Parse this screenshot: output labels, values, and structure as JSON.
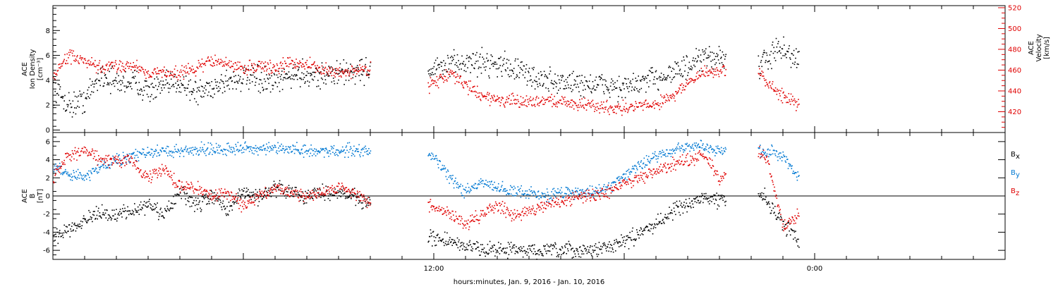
{
  "chart_data": {
    "type": "scatter",
    "x_range_hours": [
      0,
      30
    ],
    "x_ticks": [
      {
        "t": 12,
        "label": "12:00"
      },
      {
        "t": 24,
        "label": "0:00"
      }
    ],
    "xlabel": "hours:minutes, Jan.  9, 2016 - Jan. 10, 2016",
    "data_gaps_hours": [
      [
        10,
        11.8
      ],
      [
        21.2,
        22.2
      ],
      [
        23.5,
        30
      ]
    ],
    "panels": [
      {
        "name": "ACE Ion Density / Velocity",
        "ylabel_lines": [
          "ACE",
          "Ion Density",
          "[cm⁻³]"
        ],
        "ylim": [
          -0.2,
          10
        ],
        "yticks": [
          0,
          2,
          4,
          6,
          8
        ],
        "ylabel_right_lines": [
          "ACE",
          "Velocity",
          "[km/s]"
        ],
        "ylim_right": [
          400,
          522
        ],
        "yticks_right": [
          420,
          440,
          460,
          480,
          500,
          520
        ],
        "right_axis_color": "#e00000",
        "series": [
          {
            "name": "density",
            "axis": "left",
            "color": "#000000",
            "points": [
              [
                0,
                3.5
              ],
              [
                0.5,
                2.0
              ],
              [
                1,
                2.5
              ],
              [
                1.5,
                4.5
              ],
              [
                2,
                3.8
              ],
              [
                2.5,
                4.0
              ],
              [
                3,
                3.2
              ],
              [
                3.5,
                3.5
              ],
              [
                4,
                4.0
              ],
              [
                4.5,
                3.0
              ],
              [
                5,
                3.5
              ],
              [
                5.5,
                4.0
              ],
              [
                6,
                4.2
              ],
              [
                6.5,
                4.0
              ],
              [
                7,
                3.8
              ],
              [
                7.5,
                4.5
              ],
              [
                8,
                4.5
              ],
              [
                8.5,
                4.4
              ],
              [
                9,
                4.6
              ],
              [
                9.5,
                4.8
              ],
              [
                10,
                4.9
              ],
              [
                11.8,
                4.8
              ],
              [
                12.5,
                5.2
              ],
              [
                13,
                5.5
              ],
              [
                13.5,
                5.5
              ],
              [
                14,
                5.4
              ],
              [
                14.5,
                5.0
              ],
              [
                15,
                4.4
              ],
              [
                15.5,
                4.0
              ],
              [
                16,
                3.9
              ],
              [
                16.5,
                3.8
              ],
              [
                17,
                3.7
              ],
              [
                17.5,
                3.6
              ],
              [
                18,
                3.4
              ],
              [
                18.5,
                3.8
              ],
              [
                19,
                4.2
              ],
              [
                19.5,
                4.8
              ],
              [
                20,
                5.0
              ],
              [
                20.5,
                5.8
              ],
              [
                21,
                6.0
              ],
              [
                22.2,
                4.8
              ],
              [
                22.5,
                6.0
              ],
              [
                23,
                6.5
              ],
              [
                23.5,
                5.5
              ]
            ],
            "jitter": 1.5
          },
          {
            "name": "velocity",
            "axis": "right",
            "color": "#e00000",
            "points": [
              [
                0,
                455
              ],
              [
                0.5,
                475
              ],
              [
                1,
                468
              ],
              [
                1.5,
                462
              ],
              [
                2,
                465
              ],
              [
                2.5,
                465
              ],
              [
                3,
                458
              ],
              [
                3.5,
                458
              ],
              [
                4,
                458
              ],
              [
                4.5,
                462
              ],
              [
                5,
                470
              ],
              [
                5.5,
                466
              ],
              [
                6,
                462
              ],
              [
                6.5,
                465
              ],
              [
                7,
                462
              ],
              [
                7.5,
                468
              ],
              [
                8,
                466
              ],
              [
                8.5,
                460
              ],
              [
                9,
                458
              ],
              [
                9.5,
                460
              ],
              [
                10,
                462
              ],
              [
                11.8,
                446
              ],
              [
                12.5,
                457
              ],
              [
                13,
                446
              ],
              [
                13.5,
                436
              ],
              [
                14,
                432
              ],
              [
                14.5,
                430
              ],
              [
                15,
                430
              ],
              [
                15.5,
                432
              ],
              [
                16,
                430
              ],
              [
                16.5,
                428
              ],
              [
                17,
                426
              ],
              [
                17.5,
                425
              ],
              [
                18,
                424
              ],
              [
                18.5,
                426
              ],
              [
                19,
                428
              ],
              [
                19.5,
                436
              ],
              [
                20,
                448
              ],
              [
                20.5,
                458
              ],
              [
                21,
                460
              ],
              [
                22.2,
                458
              ],
              [
                22.5,
                448
              ],
              [
                23,
                436
              ],
              [
                23.5,
                425
              ]
            ],
            "jitter": 9
          }
        ]
      },
      {
        "name": "ACE B",
        "ylabel_lines": [
          "ACE",
          "B",
          "[nT]"
        ],
        "ylim": [
          -7,
          7
        ],
        "yticks": [
          -6,
          -4,
          -2,
          0,
          2,
          4,
          6
        ],
        "zero_line": true,
        "series": [
          {
            "name": "Bx",
            "label": "B",
            "subscript": "x",
            "color": "#000000",
            "points": [
              [
                0,
                -4.5
              ],
              [
                0.5,
                -3.5
              ],
              [
                1,
                -2.5
              ],
              [
                1.5,
                -2.0
              ],
              [
                2,
                -2.0
              ],
              [
                2.5,
                -1.5
              ],
              [
                3,
                -1.0
              ],
              [
                3.5,
                -2.0
              ],
              [
                4,
                0.5
              ],
              [
                4.5,
                -1.0
              ],
              [
                5,
                0.0
              ],
              [
                5.5,
                -1.5
              ],
              [
                6,
                0.5
              ],
              [
                6.5,
                0.0
              ],
              [
                7,
                1.0
              ],
              [
                7.5,
                0.5
              ],
              [
                8,
                0.0
              ],
              [
                8.5,
                0.5
              ],
              [
                9,
                0.5
              ],
              [
                9.5,
                0.0
              ],
              [
                10,
                -1.0
              ],
              [
                11.8,
                -4.5
              ],
              [
                12.5,
                -5.0
              ],
              [
                13,
                -5.5
              ],
              [
                13.5,
                -5.8
              ],
              [
                14,
                -5.8
              ],
              [
                14.5,
                -5.9
              ],
              [
                15,
                -6.0
              ],
              [
                15.5,
                -6.0
              ],
              [
                16,
                -6.0
              ],
              [
                16.5,
                -6.0
              ],
              [
                17,
                -5.9
              ],
              [
                17.5,
                -5.5
              ],
              [
                18,
                -5.0
              ],
              [
                18.5,
                -4.0
              ],
              [
                19,
                -3.0
              ],
              [
                19.5,
                -1.5
              ],
              [
                20,
                -1.0
              ],
              [
                20.5,
                0.0
              ],
              [
                21,
                -0.5
              ],
              [
                22.2,
                0.5
              ],
              [
                22.5,
                -0.5
              ],
              [
                23,
                -3.0
              ],
              [
                23.5,
                -5.0
              ]
            ],
            "jitter": 1.2
          },
          {
            "name": "By",
            "label": "B",
            "subscript": "y",
            "color": "#0078d2",
            "points": [
              [
                0,
                3.5
              ],
              [
                0.5,
                2.5
              ],
              [
                1,
                2.0
              ],
              [
                1.5,
                3.5
              ],
              [
                2,
                4.0
              ],
              [
                2.5,
                4.5
              ],
              [
                3,
                4.8
              ],
              [
                3.5,
                5.0
              ],
              [
                4,
                5.0
              ],
              [
                4.5,
                5.2
              ],
              [
                5,
                5.2
              ],
              [
                5.5,
                5.3
              ],
              [
                6,
                5.3
              ],
              [
                6.5,
                5.2
              ],
              [
                7,
                5.2
              ],
              [
                7.5,
                5.2
              ],
              [
                8,
                5.0
              ],
              [
                8.5,
                5.0
              ],
              [
                9,
                5.0
              ],
              [
                9.5,
                5.2
              ],
              [
                10,
                5.0
              ],
              [
                11.8,
                5.0
              ],
              [
                12.5,
                2.0
              ],
              [
                13,
                0.5
              ],
              [
                13.5,
                1.5
              ],
              [
                14,
                1.0
              ],
              [
                14.5,
                0.5
              ],
              [
                15,
                0.5
              ],
              [
                15.5,
                0.0
              ],
              [
                16,
                0.5
              ],
              [
                16.5,
                0.5
              ],
              [
                17,
                0.5
              ],
              [
                17.5,
                1.0
              ],
              [
                18,
                2.5
              ],
              [
                18.5,
                3.5
              ],
              [
                19,
                4.5
              ],
              [
                19.5,
                5.0
              ],
              [
                20,
                5.5
              ],
              [
                20.5,
                5.5
              ],
              [
                21,
                5.0
              ],
              [
                22.2,
                5.0
              ],
              [
                22.5,
                5.0
              ],
              [
                23,
                4.5
              ],
              [
                23.5,
                2.0
              ]
            ],
            "jitter": 1.0
          },
          {
            "name": "Bz",
            "label": "B",
            "subscript": "z",
            "color": "#e00000",
            "points": [
              [
                0,
                2.0
              ],
              [
                0.5,
                4.5
              ],
              [
                1,
                5.0
              ],
              [
                1.5,
                4.0
              ],
              [
                2,
                4.0
              ],
              [
                2.5,
                3.8
              ],
              [
                3,
                2.0
              ],
              [
                3.5,
                3.0
              ],
              [
                4,
                1.0
              ],
              [
                4.5,
                1.0
              ],
              [
                5,
                0.0
              ],
              [
                5.5,
                0.5
              ],
              [
                6,
                -1.0
              ],
              [
                6.5,
                0.0
              ],
              [
                7,
                1.0
              ],
              [
                7.5,
                0.5
              ],
              [
                8,
                0.0
              ],
              [
                8.5,
                0.5
              ],
              [
                9,
                1.0
              ],
              [
                9.5,
                0.5
              ],
              [
                10,
                -1.0
              ],
              [
                11.8,
                -1.0
              ],
              [
                12.5,
                -2.0
              ],
              [
                13,
                -3.0
              ],
              [
                13.5,
                -2.0
              ],
              [
                14,
                -1.0
              ],
              [
                14.5,
                -2.0
              ],
              [
                15,
                -1.5
              ],
              [
                15.5,
                -1.0
              ],
              [
                16,
                -0.5
              ],
              [
                16.5,
                0.0
              ],
              [
                17,
                0.0
              ],
              [
                17.5,
                0.5
              ],
              [
                18,
                1.5
              ],
              [
                18.5,
                2.0
              ],
              [
                19,
                3.0
              ],
              [
                19.5,
                3.5
              ],
              [
                20,
                4.0
              ],
              [
                20.5,
                4.5
              ],
              [
                21,
                2.0
              ],
              [
                22.2,
                5.0
              ],
              [
                22.5,
                4.0
              ],
              [
                23,
                -3.5
              ],
              [
                23.5,
                -2.0
              ]
            ],
            "jitter": 1.0
          }
        ]
      }
    ]
  }
}
